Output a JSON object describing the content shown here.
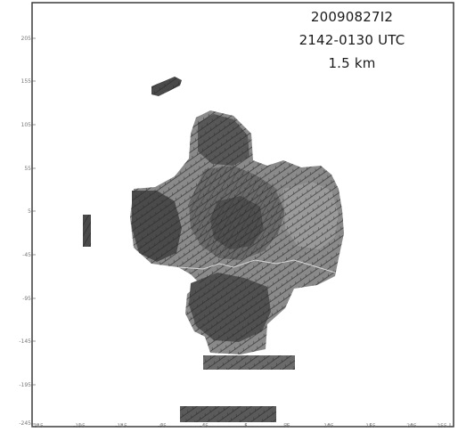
{
  "annotation": {
    "case_id": "20090827I2",
    "time_range": "2142-0130 UTC",
    "altitude": "1.5 km"
  },
  "axes": {
    "x_ticks": [
      "-245",
      "-195",
      "-145",
      "-95",
      "-45",
      "5",
      "55",
      "105",
      "155",
      "205",
      "255"
    ],
    "y_ticks": [
      "205",
      "155",
      "105",
      "55",
      "5",
      "-45",
      "-95",
      "-145",
      "-195",
      "-245"
    ]
  },
  "colors": {
    "background": "#ffffff",
    "frame": "#3a3a3a",
    "echo_light": "#8c8c8c",
    "echo_medium": "#6c6c6c",
    "echo_dark": "#4a4a4a",
    "wind_barb": "#2b2b2b",
    "boundary": "#d8d8d8"
  }
}
